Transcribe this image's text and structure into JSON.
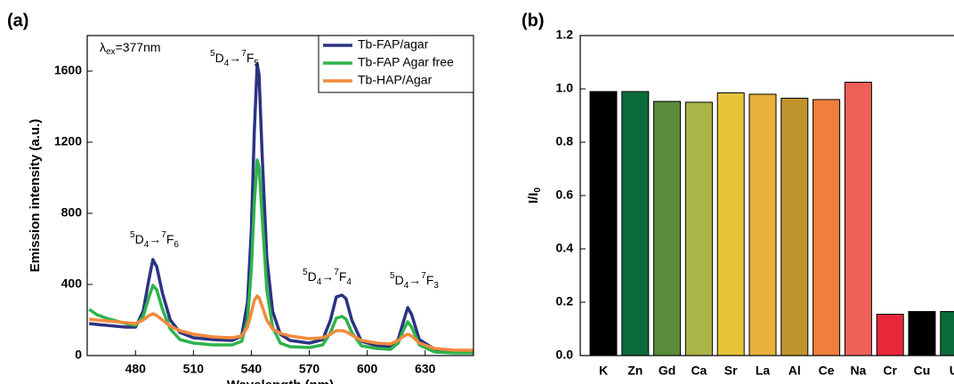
{
  "chart_data": [
    {
      "type": "line",
      "panel_label": "(a)",
      "xlabel": "Wavelength (nm)",
      "ylabel": "Emission intensity (a.u.)",
      "xlim": [
        455,
        655
      ],
      "ylim": [
        0,
        1800
      ],
      "xticks": [
        480,
        510,
        540,
        570,
        600,
        630
      ],
      "yticks": [
        0,
        400,
        800,
        1200,
        1600
      ],
      "legend": "upper right",
      "x": [
        456,
        460,
        465,
        470,
        475,
        480,
        484,
        487,
        489,
        491,
        494,
        498,
        503,
        510,
        520,
        530,
        535,
        538,
        540,
        541.5,
        543,
        544,
        545.5,
        548,
        551,
        555,
        560,
        570,
        577,
        581,
        584,
        587,
        589,
        592,
        597,
        605,
        612,
        616,
        619,
        621,
        623,
        627,
        635,
        645,
        655
      ],
      "series": [
        {
          "name": "Tb-FAP/agar",
          "color": "#2b3381",
          "values": [
            180,
            175,
            170,
            165,
            160,
            160,
            250,
            430,
            540,
            500,
            350,
            200,
            130,
            100,
            90,
            85,
            110,
            300,
            700,
            1250,
            1640,
            1580,
            1150,
            550,
            250,
            120,
            85,
            70,
            90,
            200,
            330,
            340,
            320,
            200,
            80,
            55,
            50,
            90,
            200,
            270,
            230,
            90,
            35,
            25,
            25
          ]
        },
        {
          "name": "Tb-FAP Agar free",
          "color": "#2eb34b",
          "values": [
            260,
            230,
            210,
            195,
            180,
            170,
            220,
            330,
            395,
            370,
            260,
            150,
            90,
            70,
            60,
            60,
            80,
            200,
            480,
            850,
            1100,
            1060,
            800,
            370,
            160,
            70,
            50,
            45,
            60,
            130,
            210,
            220,
            205,
            130,
            55,
            40,
            35,
            70,
            150,
            190,
            160,
            60,
            20,
            15,
            15
          ]
        },
        {
          "name": "Tb-HAP/Agar",
          "color": "#f28a3c",
          "values": [
            205,
            200,
            195,
            190,
            185,
            180,
            200,
            225,
            235,
            225,
            200,
            165,
            140,
            120,
            105,
            100,
            110,
            160,
            240,
            310,
            335,
            325,
            280,
            200,
            150,
            125,
            110,
            95,
            100,
            120,
            140,
            140,
            135,
            115,
            85,
            70,
            65,
            85,
            110,
            120,
            110,
            70,
            40,
            30,
            30
          ]
        }
      ],
      "annotations": [
        [
          "λ",
          "ex",
          "=377nm"
        ],
        [
          "5",
          "D",
          "4",
          "→",
          "7",
          "F",
          "5"
        ],
        [
          "5",
          "D",
          "4",
          "→",
          "7",
          "F",
          "6"
        ],
        [
          "5",
          "D",
          "4",
          "→",
          "7",
          "F",
          "4"
        ],
        [
          "5",
          "D",
          "4",
          "→",
          "7",
          "F",
          "3"
        ]
      ]
    },
    {
      "type": "bar",
      "panel_label": "(b)",
      "ylabel": [
        "I/I",
        "0"
      ],
      "ylim": [
        0,
        1.2
      ],
      "yticks": [
        {
          "value": 0,
          "label": "0.0"
        },
        0.2,
        0.4,
        0.6,
        0.8,
        {
          "value": 1,
          "label": "1.0"
        },
        1.2
      ],
      "categories": [
        "K",
        "Zn",
        "Gd",
        "Ca",
        "Sr",
        "La",
        "Al",
        "Ce",
        "Na",
        "Cr",
        "Cu",
        "U"
      ],
      "values": [
        0.99,
        0.99,
        0.953,
        0.95,
        0.985,
        0.98,
        0.965,
        0.96,
        1.025,
        0.155,
        0.165,
        0.165
      ],
      "colors": [
        "#000000",
        "#0b6b3a",
        "#5a8a3c",
        "#a9b546",
        "#e6c43a",
        "#e9b03a",
        "#c0942d",
        "#ef7f3a",
        "#ee6058",
        "#e8273a",
        "#000000",
        "#0b6b3a"
      ]
    }
  ]
}
